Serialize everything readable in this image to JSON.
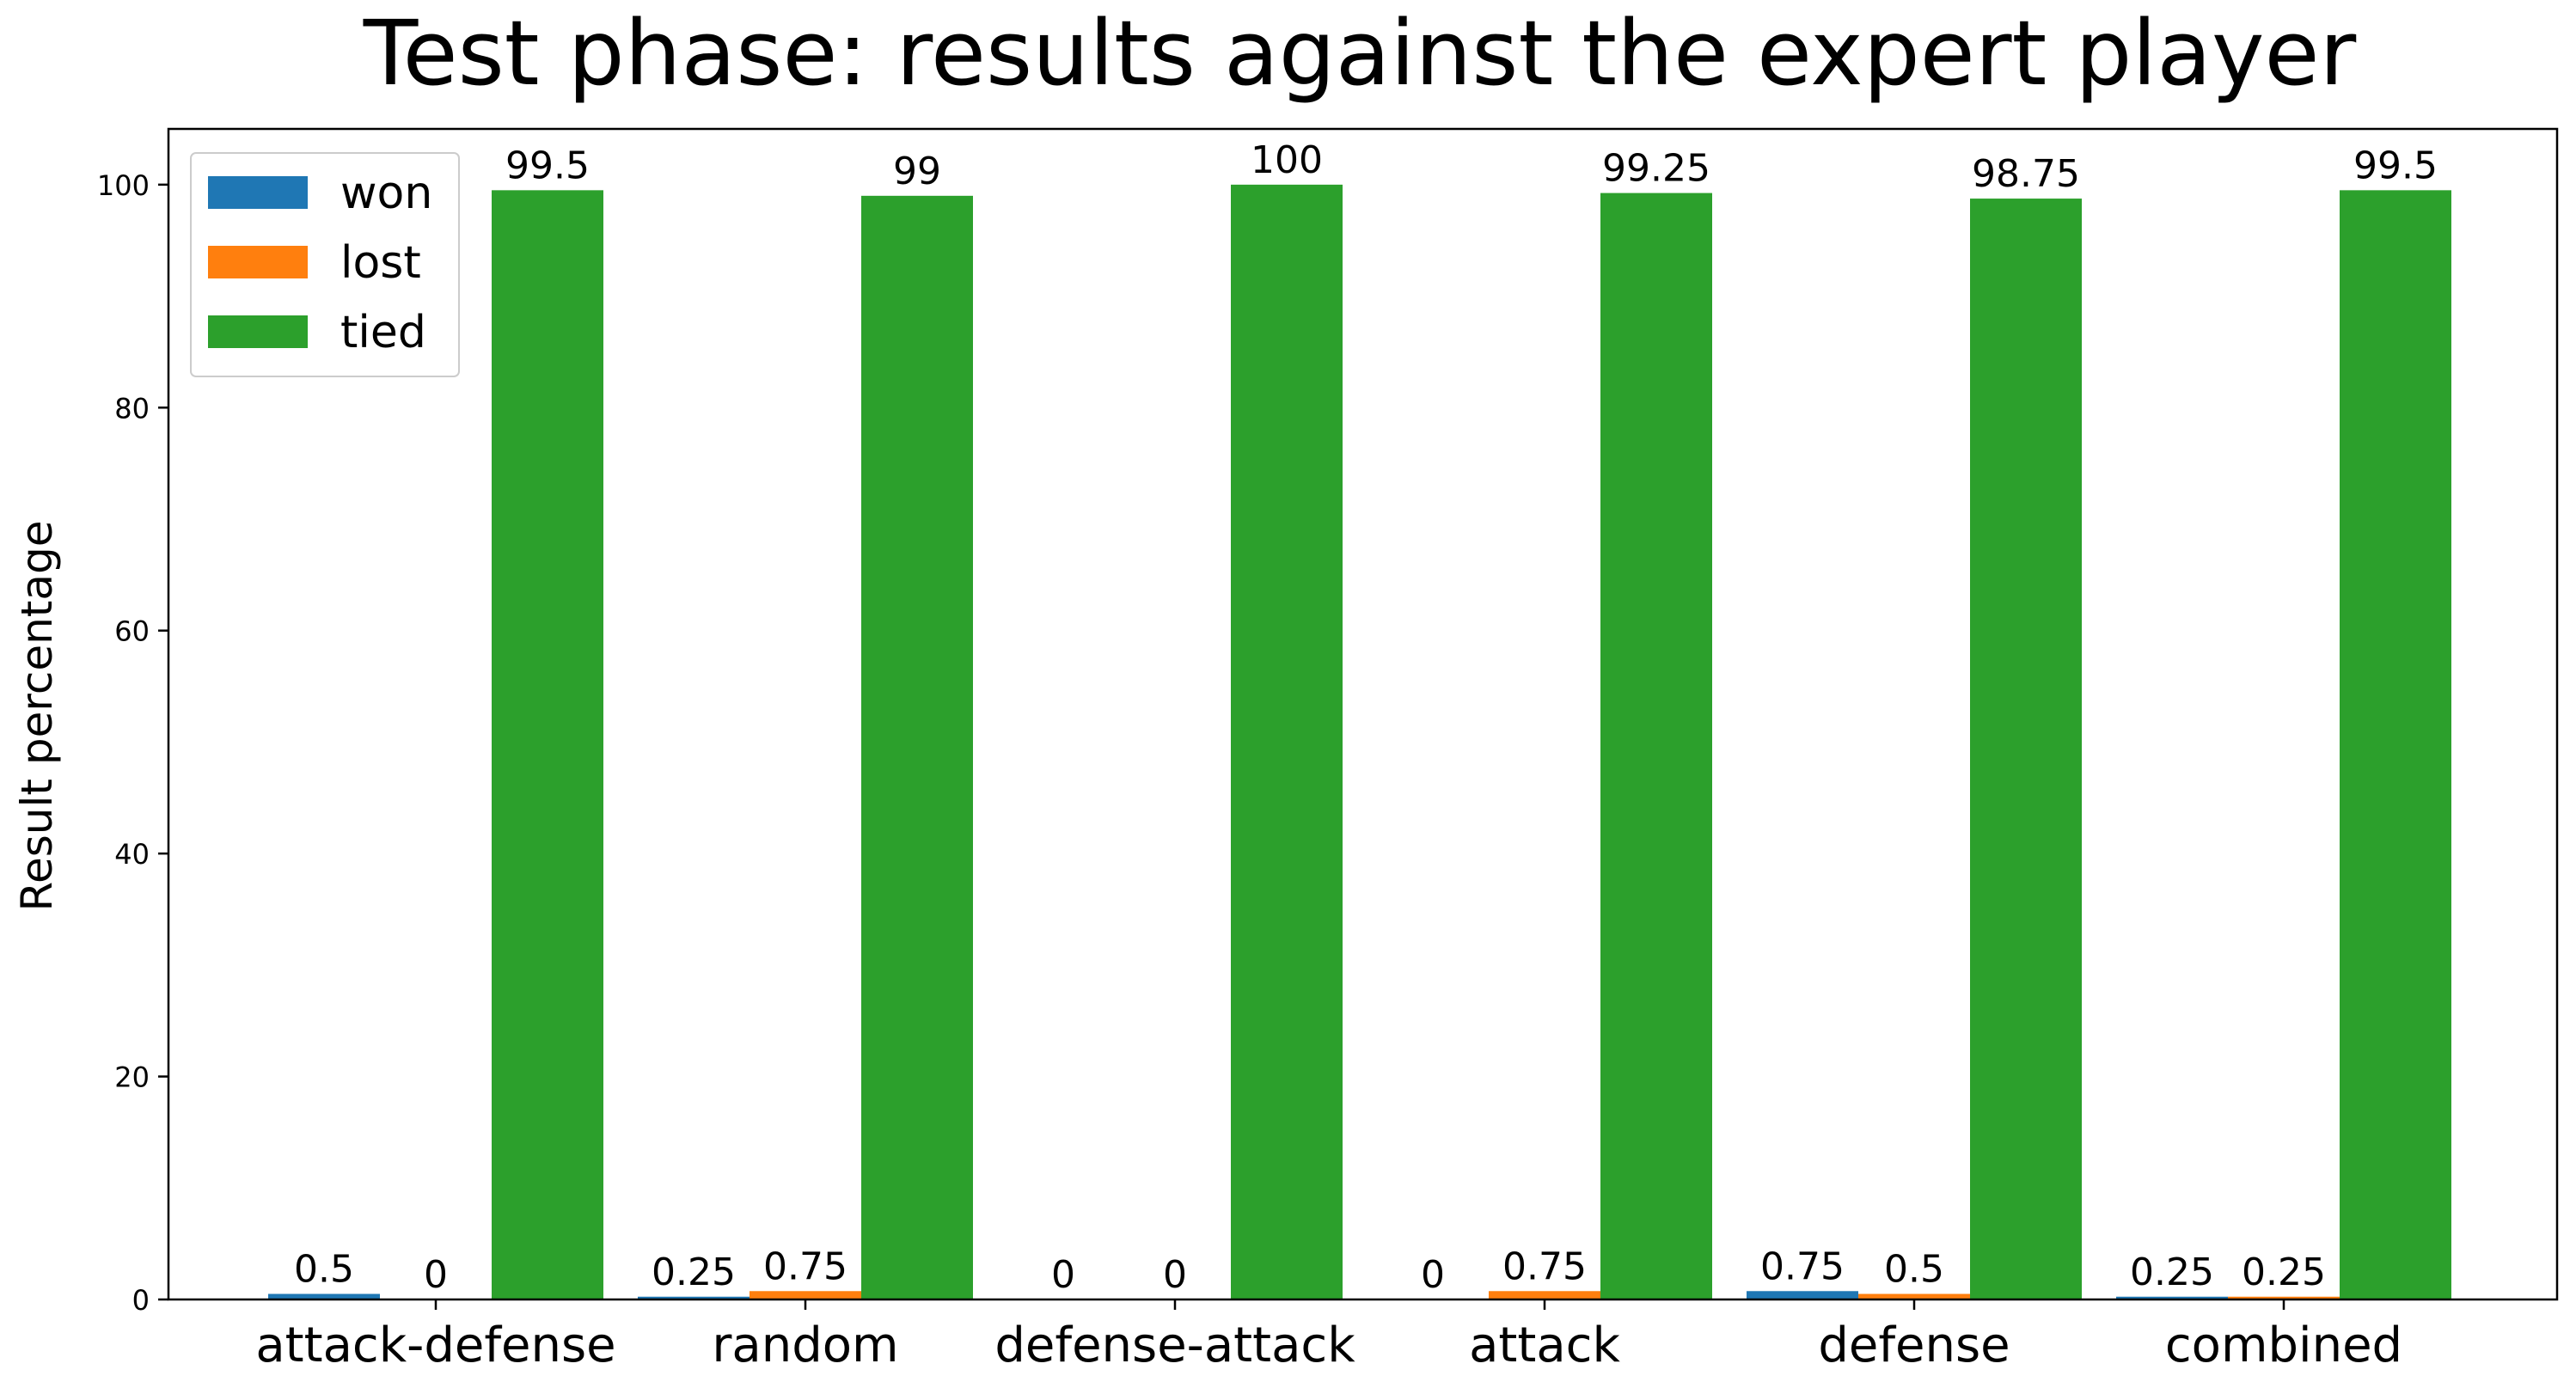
{
  "chart_data": {
    "type": "bar",
    "title": "Test phase: results against the expert player",
    "xlabel": "",
    "ylabel": "Result percentage",
    "categories": [
      "attack-defense",
      "random",
      "defense-attack",
      "attack",
      "defense",
      "combined"
    ],
    "series": [
      {
        "name": "won",
        "color": "#1f77b4",
        "values": [
          0.5,
          0.25,
          0,
          0,
          0.75,
          0.25
        ],
        "labels": [
          "0.5",
          "0.25",
          "0",
          "0",
          "0.75",
          "0.25"
        ]
      },
      {
        "name": "lost",
        "color": "#ff7f0e",
        "values": [
          0,
          0.75,
          0,
          0.75,
          0.5,
          0.25
        ],
        "labels": [
          "0",
          "0.75",
          "0",
          "0.75",
          "0.5",
          "0.25"
        ]
      },
      {
        "name": "tied",
        "color": "#2ca02c",
        "values": [
          99.5,
          99,
          100,
          99.25,
          98.75,
          99.5
        ],
        "labels": [
          "99.5",
          "99",
          "100",
          "99.25",
          "98.75",
          "99.5"
        ]
      }
    ],
    "ylim": [
      0,
      105
    ],
    "yticks": [
      0,
      20,
      40,
      60,
      80,
      100
    ],
    "ytick_labels": [
      "0",
      "20",
      "40",
      "60",
      "80",
      "100"
    ],
    "grid": false,
    "legend_position": "top-left"
  }
}
